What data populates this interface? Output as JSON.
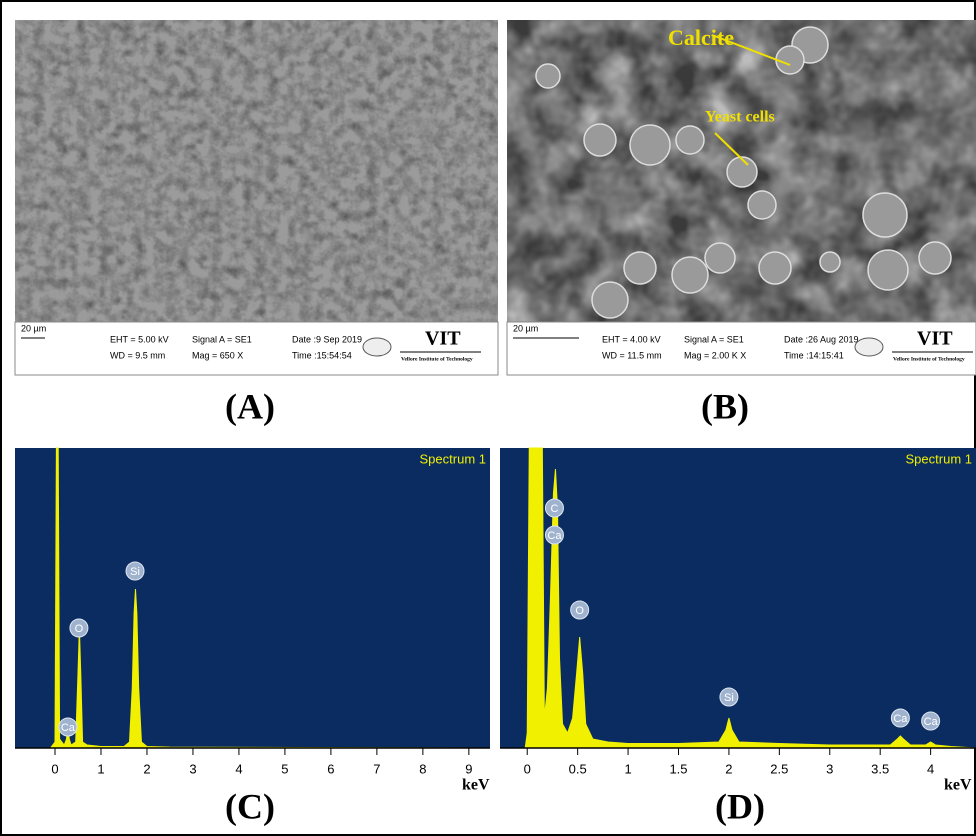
{
  "panels": [
    {
      "label": "(A)",
      "scale_bar": "20 µm",
      "info": [
        "EHT = 5.00 kV",
        "WD = 9.5 mm",
        "Signal A = SE1",
        "Mag =  650 X",
        "Date :9 Sep 2019",
        "Time :15:54:54"
      ],
      "logo": "VIT",
      "logo_subtitle": "Vellore Institute of Technology"
    },
    {
      "label": "(B)",
      "scale_bar": "20 µm",
      "info": [
        "EHT = 4.00 kV",
        "WD = 11.5 mm",
        "Signal A = SE1",
        "Mag =  2.00 K X",
        "Date :26 Aug 2019",
        "Time :14:15:41"
      ],
      "logo": "VIT",
      "logo_subtitle": "Vellore Institute of Technology",
      "annotations": [
        "Calcite",
        "Yeast cells"
      ]
    },
    {
      "label": "(C)"
    },
    {
      "label": "(D)"
    }
  ],
  "chart_data": [
    {
      "type": "line",
      "title": "Spectrum 1",
      "x_label": "keV",
      "color": "#f0f000",
      "background": "#0b2c60",
      "xlim": [
        -0.87,
        9.46
      ],
      "ylim": [
        0,
        100
      ],
      "xticks": [
        0,
        1,
        2,
        3,
        4,
        5,
        6,
        7,
        8,
        9
      ],
      "x": [
        -0.87,
        -0.1,
        0.0,
        0.03,
        0.07,
        0.1,
        0.2,
        0.25,
        0.28,
        0.31,
        0.35,
        0.45,
        0.5,
        0.53,
        0.56,
        0.6,
        0.7,
        1.0,
        1.5,
        1.62,
        1.68,
        1.72,
        1.75,
        1.78,
        1.82,
        1.88,
        2.0,
        2.5,
        9.46
      ],
      "values": [
        0,
        0,
        2,
        100,
        100,
        3,
        1,
        3,
        8,
        3,
        1,
        2,
        25,
        40,
        25,
        2,
        1,
        0.5,
        0.5,
        2,
        20,
        45,
        53,
        45,
        20,
        2,
        0.5,
        0.3,
        0
      ],
      "peaks": [
        {
          "label": "Ca",
          "x": 0.28,
          "y": 7
        },
        {
          "label": "O",
          "x": 0.52,
          "y": 40
        },
        {
          "label": "Si",
          "x": 1.74,
          "y": 59
        }
      ]
    },
    {
      "type": "line",
      "title": "Spectrum 1",
      "x_label": "keV",
      "color": "#f0f000",
      "background": "#0b2c60",
      "xlim": [
        -0.27,
        4.45
      ],
      "ylim": [
        0,
        100
      ],
      "xticks": [
        0,
        0.5,
        1,
        1.5,
        2,
        2.5,
        3,
        3.5,
        4
      ],
      "x": [
        -0.27,
        -0.02,
        0.0,
        0.02,
        0.15,
        0.17,
        0.2,
        0.23,
        0.26,
        0.28,
        0.3,
        0.32,
        0.35,
        0.4,
        0.45,
        0.49,
        0.52,
        0.55,
        0.58,
        0.65,
        0.8,
        1.0,
        1.5,
        1.9,
        1.97,
        2.0,
        2.03,
        2.1,
        2.5,
        3.0,
        3.6,
        3.67,
        3.7,
        3.73,
        3.8,
        3.95,
        4.0,
        4.05,
        4.2,
        4.45
      ],
      "values": [
        0,
        0,
        5,
        100,
        100,
        10,
        20,
        50,
        85,
        93,
        80,
        30,
        8,
        5,
        10,
        25,
        37,
        25,
        8,
        3,
        2,
        1.5,
        1.5,
        2,
        6,
        10,
        6,
        2,
        1.5,
        1,
        1,
        3,
        4,
        3,
        1,
        1,
        2,
        1,
        0.5,
        0
      ],
      "peaks": [
        {
          "label": "C",
          "x": 0.27,
          "y": 80
        },
        {
          "label": "Ca",
          "x": 0.27,
          "y": 71
        },
        {
          "label": "O",
          "x": 0.52,
          "y": 46
        },
        {
          "label": "Si",
          "x": 2.0,
          "y": 17
        },
        {
          "label": "Ca",
          "x": 3.7,
          "y": 10
        },
        {
          "label": "Ca",
          "x": 4.0,
          "y": 9
        }
      ]
    }
  ]
}
